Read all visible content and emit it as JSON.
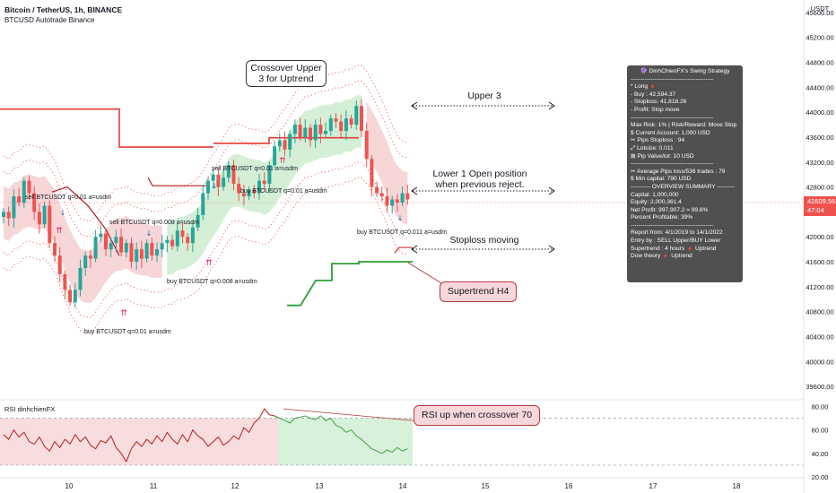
{
  "header": {
    "title": "Bitcoin / TetherUS, 1h, BINANCE",
    "subtitle": "BTCUSD Autotrade Binance"
  },
  "price_axis": {
    "currency": "USDT",
    "current_price": "42609.56",
    "countdown": "47:04",
    "ticks": [
      "45600.00",
      "45200.00",
      "44800.00",
      "44400.00",
      "44000.00",
      "43600.00",
      "43200.00",
      "42800.00",
      "42400.00",
      "42000.00",
      "41600.00",
      "41200.00",
      "40800.00",
      "40400.00",
      "40000.00",
      "39600.00"
    ]
  },
  "rsi_axis": {
    "ticks": [
      "80.00",
      "60.00",
      "40.00",
      "20.00"
    ],
    "label": "RSI dinhchienFX"
  },
  "time_axis": {
    "ticks": [
      "10",
      "11",
      "12",
      "13",
      "14",
      "15",
      "16",
      "17",
      "18"
    ]
  },
  "strategy_panel": {
    "lines": [
      "🔮 DinhChienFX's Swing Strategy",
      "------------------------------------------",
      "* Long 🔺",
      "- Buy    : 42,594.37",
      "- Stoploss: 41,818.26",
      "- Profit: Stop move",
      "------------------------------------------",
      "Max Risk: 1% | Risk/Reward: Move Stop",
      "$ Current Account: 1,000 USD",
      "✂ Pips Stoploss : 94",
      "⤢ Lotsize: 0.011",
      "⊠ Pip Value/lot: 10 USD",
      "------------------------------------------",
      "✂ Average Pips loss/536 trades : 79",
      "$ Min capital: 790 USD",
      "---------- OVERVIEW SUMMARY ---------",
      "Capital: 1,000,000",
      "Equity: 2,000,361.4",
      "Net Profit: 997,907.2 ≈ 99.8%",
      "Percent Profitable: 39%",
      "------------------------------------------",
      "Report from: 4/1/2019 to 14/1/2022",
      "Entry by : SELL Upper/BUY Lower",
      "Supertrend : 4 hours 🔺 Uptrend",
      "Dow theory  🔺 Uptrend"
    ]
  },
  "annotations": {
    "crossover_box": [
      "Crossover Upper",
      "3 for Uptrend"
    ],
    "upper3": "Upper 3",
    "lower1": [
      "Lower 1 Open position",
      "when previous reject."
    ],
    "stoploss": "Stoploss moving",
    "supertrend": "Supertrend H4",
    "rsi_box": "RSI up when crossover 70"
  },
  "trade_labels": [
    {
      "text": "sell BTCUSDT q=0.01 a=usdm"
    },
    {
      "text": "sell BTCUSDT q=0.008 a=usdm"
    },
    {
      "text": "sell BTCUSDT q=0.01 a=usdm"
    },
    {
      "text": "buy BTCUSDT q=0.01 a=usdm"
    },
    {
      "text": "buy BTCUSDT q=0.008 a=usdm"
    },
    {
      "text": "buy BTCUSDT q=0.01 a=usdm"
    },
    {
      "text": "buy BTCUSDT q=0.011 a=usdm"
    }
  ],
  "colors": {
    "up": "#26a69a",
    "down": "#ef5350",
    "candle_up": "#26a69a",
    "candle_down": "#ef5350",
    "band_red": "#f6cfd1",
    "band_green": "#cdeccf",
    "resistance": "#e53935",
    "supertrend": "#2e9e35",
    "rsi_line": "#b71c1c",
    "rsi_line_up": "#43a047"
  },
  "chart_data": [
    {
      "type": "candlestick",
      "title": "Bitcoin / TetherUS, 1h, BINANCE",
      "series": [
        {
          "name": "close",
          "values": [
            42400,
            42300,
            42650,
            42550,
            42900,
            42700,
            42400,
            42200,
            42500,
            41900,
            41700,
            41400,
            41150,
            40950,
            41150,
            41500,
            41700,
            41650,
            42000,
            42050,
            41800,
            41900,
            42000,
            41750,
            41900,
            41600,
            41800,
            41650,
            41900,
            41700,
            41800,
            41900,
            41950,
            41850,
            42100,
            42000,
            41900,
            42150,
            42350,
            42700,
            42900,
            43000,
            42800,
            42950,
            43150,
            42850,
            42700,
            42650,
            42750,
            42700,
            42900,
            42850,
            43150,
            43450,
            43550,
            43400,
            43650,
            43800,
            43600,
            43750,
            43550,
            43800,
            43650,
            43700,
            43900,
            43850,
            43700,
            43900,
            43800,
            44100,
            43700,
            43250,
            42800,
            42700,
            42650,
            42500,
            42600,
            42550,
            42700,
            42600
          ]
        }
      ],
      "ylim": [
        39400,
        45800
      ],
      "x_ticks": [
        "10",
        "11",
        "12",
        "13",
        "14",
        "15",
        "16",
        "17",
        "18"
      ]
    },
    {
      "type": "line",
      "title": "RSI dinhchienFX",
      "series": [
        {
          "name": "RSI",
          "values": [
            56,
            52,
            60,
            54,
            58,
            50,
            48,
            54,
            46,
            42,
            50,
            45,
            52,
            48,
            56,
            50,
            54,
            47,
            44,
            51,
            49,
            55,
            45,
            40,
            33,
            44,
            50,
            46,
            52,
            48,
            55,
            50,
            58,
            52,
            48,
            56,
            50,
            60,
            55,
            52,
            46,
            50,
            54,
            47,
            50,
            55,
            52,
            62,
            58,
            66,
            70,
            78,
            73,
            72,
            70,
            68,
            66,
            70,
            71,
            72,
            70,
            69,
            72,
            68,
            70,
            64,
            62,
            58,
            60,
            55,
            52,
            48,
            44,
            42,
            40,
            43,
            41,
            45,
            42,
            44
          ]
        }
      ],
      "ylim": [
        20,
        85
      ],
      "reference_lines": [
        70,
        30
      ]
    }
  ]
}
